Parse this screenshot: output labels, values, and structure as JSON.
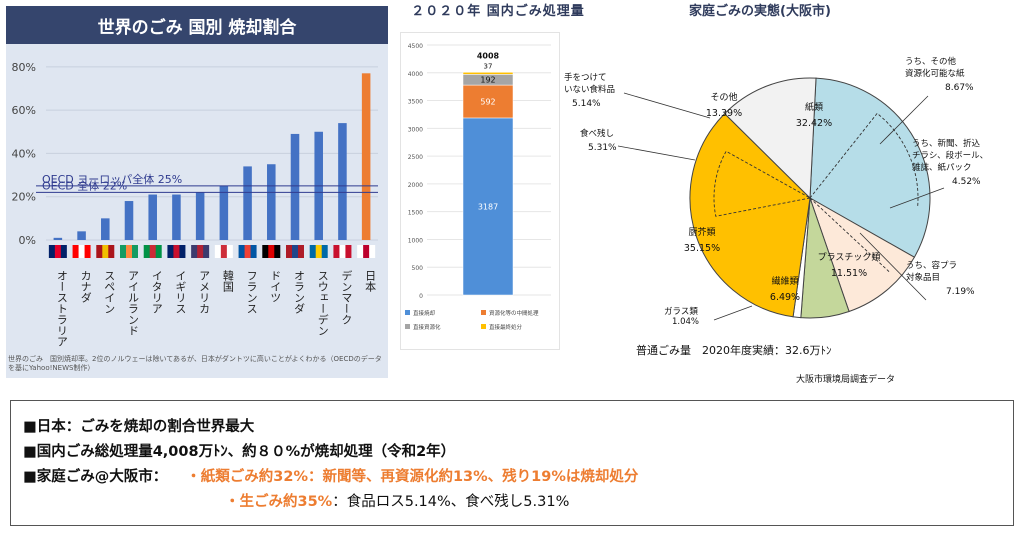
{
  "panel1": {
    "title": "世界のごみ 国別 焼却割合",
    "caption": "世界のごみ　国別焼却率。2位のノルウェーは除いてあるが、日本がダントツに高いことがよくわかる（OECDのデータを基にYahoo!NEWS制作）"
  },
  "panel2": {
    "title": "２０２０年 国内ごみ処理量"
  },
  "panel3": {
    "title": "家庭ごみの実態(大阪市)",
    "note": "普通ごみ量　2020年度実績：32.6万ﾄﾝ",
    "source": "大阪市環境局調査データ"
  },
  "bottom": {
    "line1": "■日本：ごみを焼却の割合世界最大",
    "line2": "■国内ごみ総処理量4,008万ﾄﾝ、約８０%が焼却処理（令和2年）",
    "line3_label": "■家庭ごみ@大阪市：",
    "line3_value": "・紙類ごみ約32%：新聞等、再資源化約13%、残り19%は焼却処分",
    "line4_orange": "・生ごみ約35%",
    "line4_rest": "：食品ロス5.14%、食べ残し5.31%"
  },
  "colors": {
    "bar": "#4472c4",
    "japan": "#ed7d31",
    "oecd_line": "#2f3b8f",
    "header": "#35456d"
  },
  "chart_data": [
    {
      "type": "bar",
      "title": "世界のごみ 国別 焼却割合",
      "categories": [
        "オーストラリア",
        "カナダ",
        "スペイン",
        "アイルランド",
        "イタリア",
        "イギリス",
        "アメリカ",
        "韓国",
        "フランス",
        "ドイツ",
        "オランダ",
        "スウェーデン",
        "デンマーク",
        "日本"
      ],
      "values": [
        1,
        4,
        10,
        18,
        21,
        21,
        22,
        25,
        34,
        35,
        49,
        50,
        54,
        77
      ],
      "yticks": [
        "0%",
        "20%",
        "40%",
        "60%",
        "80%"
      ],
      "ylim": [
        0,
        85
      ],
      "reference_lines": [
        {
          "label": "OECD ヨーロッパ全体 25%",
          "value": 25
        },
        {
          "label": "OECD 全体 22%",
          "value": 22
        }
      ],
      "grid": true
    },
    {
      "type": "bar",
      "title": "２０２０年 国内ごみ処理量",
      "stacked": true,
      "categories": [
        ""
      ],
      "total_label": "4008",
      "series": [
        {
          "name": "直接焼却",
          "values": [
            3187
          ],
          "color": "#4f8fd8"
        },
        {
          "name": "資源化等の中間処理",
          "values": [
            592
          ],
          "color": "#ed7d31"
        },
        {
          "name": "直接資源化",
          "values": [
            192
          ],
          "color": "#a5a5a5"
        },
        {
          "name": "直接最終処分",
          "values": [
            37
          ],
          "color": "#ffc000"
        }
      ],
      "yticks": [
        "0",
        "500",
        "1000",
        "1500",
        "2000",
        "2500",
        "3000",
        "3500",
        "4000",
        "4500"
      ],
      "ylim": [
        0,
        4500
      ],
      "grid": true
    },
    {
      "type": "pie",
      "title": "家庭ごみの実態(大阪市)",
      "slices": [
        {
          "label": "紙類",
          "value": 32.42,
          "color": "#b6dde8"
        },
        {
          "label": "プラスチック類",
          "value": 11.51,
          "color": "#fde9d9"
        },
        {
          "label": "繊維類",
          "value": 6.49,
          "color": "#c4d79b"
        },
        {
          "label": "ガラス類",
          "value": 1.04,
          "color": "#ffffff"
        },
        {
          "label": "厨芥類",
          "value": 35.15,
          "color": "#ffc000"
        },
        {
          "label": "その他",
          "value": 13.39,
          "color": "#f2f2f2"
        }
      ],
      "sub_labels": [
        {
          "label": "うち、その他資源化可能な紙",
          "value": "8.67%"
        },
        {
          "label": "うち、新聞、折込チラシ、段ボール、雑誌、紙パック",
          "value": "4.52%"
        },
        {
          "label": "うち、容プラ対象品目",
          "value": "7.19%"
        },
        {
          "label": "手をつけていない食料品",
          "value": "5.14%"
        },
        {
          "label": "食べ残し",
          "value": "5.31%"
        }
      ]
    }
  ]
}
